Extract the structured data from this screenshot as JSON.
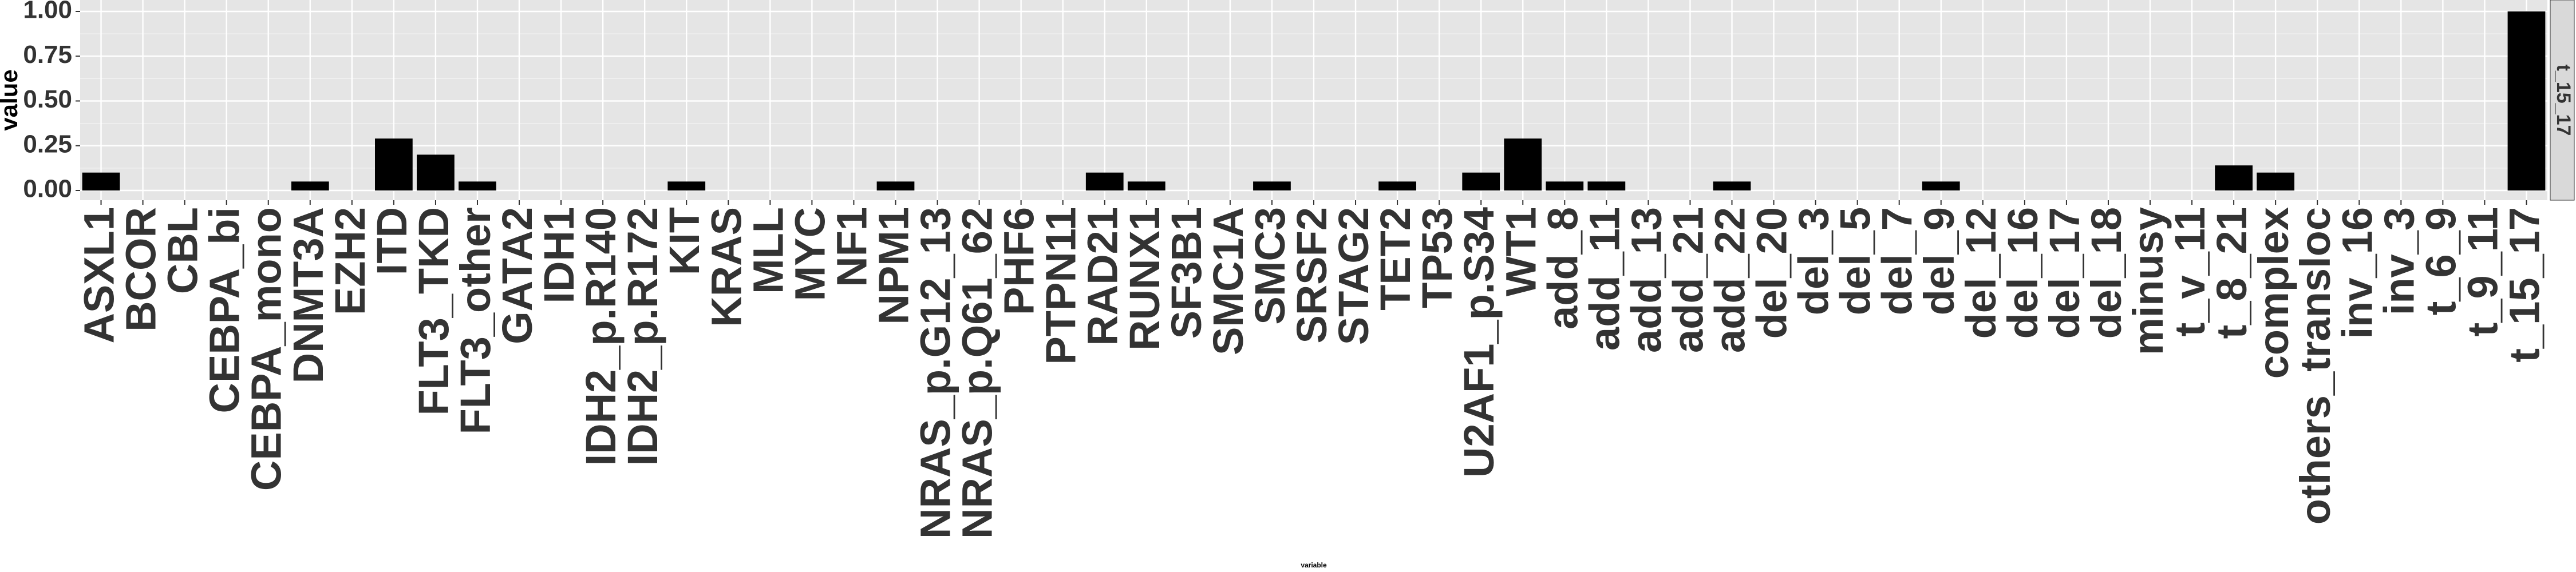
{
  "chart_data": {
    "type": "bar",
    "title": "",
    "xlabel": "variable",
    "ylabel": "value",
    "ylim": [
      0,
      1
    ],
    "yticks": [
      "0.00",
      "0.25",
      "0.50",
      "0.75",
      "1.00"
    ],
    "facet_label": "t_15_17",
    "grid": true,
    "legend": "none",
    "bar_color": "#000000",
    "panel_color": "#e5e5e5",
    "strip_color": "#d9d9d9",
    "categories": [
      "ASXL1",
      "BCOR",
      "CBL",
      "CEBPA_bi",
      "CEBPA_mono",
      "DNMT3A",
      "EZH2",
      "ITD",
      "FLT3_TKD",
      "FLT3_other",
      "GATA2",
      "IDH1",
      "IDH2_p.R140",
      "IDH2_p.R172",
      "KIT",
      "KRAS",
      "MLL",
      "MYC",
      "NF1",
      "NPM1",
      "NRAS_p.G12_13",
      "NRAS_p.Q61_62",
      "PHF6",
      "PTPN11",
      "RAD21",
      "RUNX1",
      "SF3B1",
      "SMC1A",
      "SMC3",
      "SRSF2",
      "STAG2",
      "TET2",
      "TP53",
      "U2AF1_p.S34",
      "WT1",
      "add_8",
      "add_11",
      "add_13",
      "add_21",
      "add_22",
      "del_20",
      "del_3",
      "del_5",
      "del_7",
      "del_9",
      "del_12",
      "del_16",
      "del_17",
      "del_18",
      "minusy",
      "t_v_11",
      "t_8_21",
      "complex",
      "others_transloc",
      "inv_16",
      "inv_3",
      "t_6_9",
      "t_9_11",
      "t_15_17"
    ],
    "values": [
      0.1,
      0,
      0,
      0,
      0,
      0.05,
      0,
      0.29,
      0.2,
      0.05,
      0,
      0,
      0,
      0,
      0.05,
      0,
      0,
      0,
      0,
      0.05,
      0,
      0,
      0,
      0,
      0.1,
      0.05,
      0,
      0,
      0.05,
      0,
      0,
      0.05,
      0,
      0.1,
      0.29,
      0.05,
      0.05,
      0,
      0,
      0.05,
      0,
      0,
      0,
      0,
      0.05,
      0,
      0,
      0,
      0,
      0,
      0,
      0.14,
      0.1,
      0,
      0,
      0,
      0,
      0,
      1.0
    ]
  }
}
